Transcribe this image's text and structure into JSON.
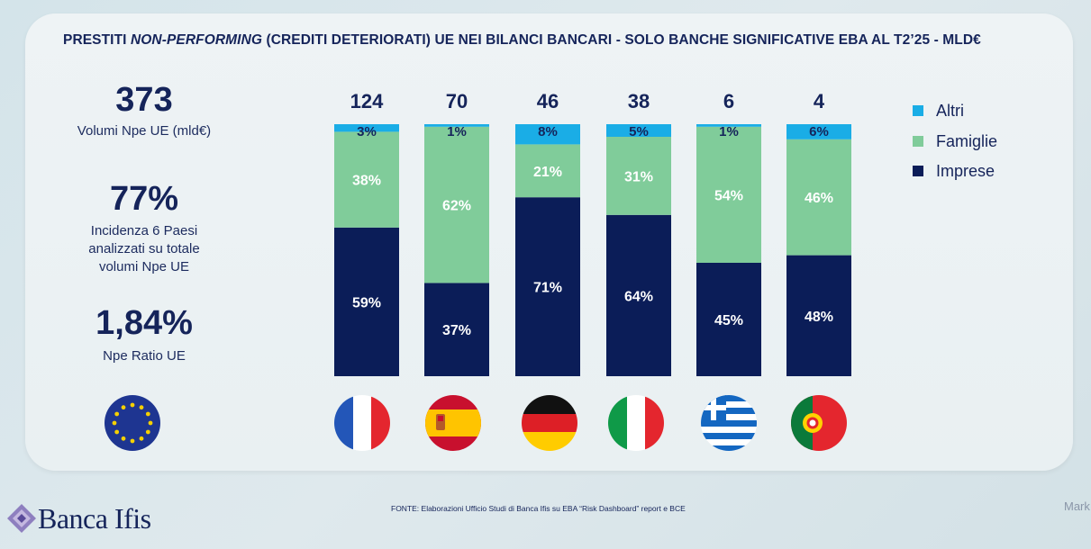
{
  "title": {
    "before": "PRESTITI ",
    "italic": "NON-PERFORMING",
    "after": " (CREDITI DETERIORATI) UE NEI BILANCI BANCARI - SOLO BANCHE SIGNIFICATIVE EBA AL T2’25 - MLD€"
  },
  "kpis": [
    {
      "value": "373",
      "label": "Volumi Npe UE (mld€)"
    },
    {
      "value": "77%",
      "label_lines": [
        "Incidenza 6 Paesi",
        "analizzati su totale",
        "volumi Npe UE"
      ]
    },
    {
      "value": "1,84%",
      "label": "Npe Ratio UE"
    }
  ],
  "colors": {
    "altri": "#1aade6",
    "famiglie": "#80cc9a",
    "imprese": "#0b1d58",
    "text_dark": "#15245a"
  },
  "chart_data": {
    "type": "bar",
    "stacked": true,
    "normalized": true,
    "categories": [
      "Francia",
      "Spagna",
      "Germania",
      "Italia",
      "Grecia",
      "Portogallo"
    ],
    "totals": [
      "124",
      "70",
      "46",
      "38",
      "6",
      "4"
    ],
    "series": [
      {
        "name": "Imprese",
        "values": [
          59,
          37,
          71,
          64,
          45,
          48
        ]
      },
      {
        "name": "Famiglie",
        "values": [
          38,
          62,
          21,
          31,
          54,
          46
        ]
      },
      {
        "name": "Altri",
        "values": [
          3,
          1,
          8,
          5,
          1,
          6
        ]
      }
    ],
    "value_labels": {
      "Imprese": [
        "59%",
        "37%",
        "71%",
        "64%",
        "45%",
        "48%"
      ],
      "Famiglie": [
        "38%",
        "62%",
        "21%",
        "31%",
        "54%",
        "46%"
      ],
      "Altri": [
        "3%",
        "1%",
        "8%",
        "5%",
        "1%",
        "6%"
      ]
    },
    "legend": [
      "Altri",
      "Famiglie",
      "Imprese"
    ],
    "legend_position": "right",
    "ylim": [
      0,
      100
    ]
  },
  "flags": [
    "eu-flag",
    "france-flag",
    "spain-flag",
    "germany-flag",
    "italy-flag",
    "greece-flag",
    "portugal-flag"
  ],
  "footer": {
    "source": "FONTE: Elaborazioni Ufficio Studi di Banca Ifis su EBA “Risk Dashboard” report e BCE",
    "brand": "Banca Ifis",
    "cut_text": "Mark"
  }
}
